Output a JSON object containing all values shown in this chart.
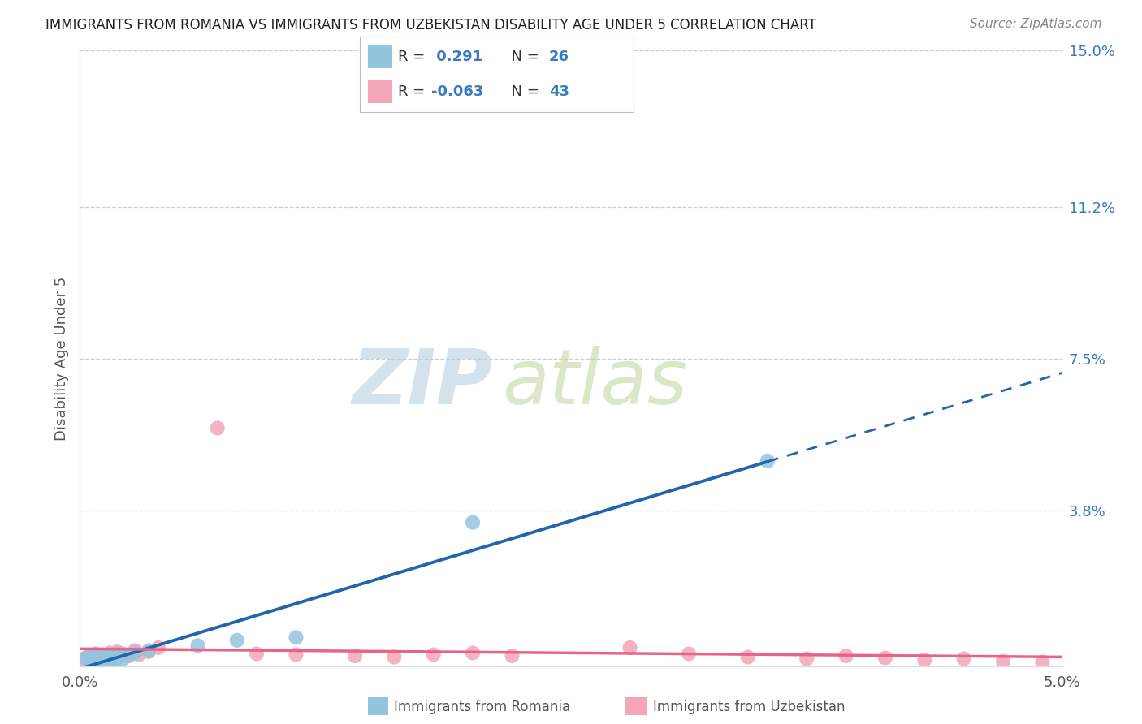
{
  "title": "IMMIGRANTS FROM ROMANIA VS IMMIGRANTS FROM UZBEKISTAN DISABILITY AGE UNDER 5 CORRELATION CHART",
  "source": "Source: ZipAtlas.com",
  "ylabel": "Disability Age Under 5",
  "xlim": [
    0.0,
    0.05
  ],
  "ylim": [
    0.0,
    0.15
  ],
  "ytick_positions": [
    0.038,
    0.075,
    0.112,
    0.15
  ],
  "ytick_labels": [
    "3.8%",
    "7.5%",
    "11.2%",
    "15.0%"
  ],
  "romania_R": 0.291,
  "romania_N": 26,
  "uzbekistan_R": -0.063,
  "uzbekistan_N": 43,
  "romania_color": "#92c5de",
  "uzbekistan_color": "#f4a6b8",
  "romania_line_color": "#2166ac",
  "uzbekistan_line_color": "#e8638a",
  "watermark_zip": "ZIP",
  "watermark_atlas": "atlas",
  "watermark_color_zip": "#b8cfe0",
  "watermark_color_atlas": "#c5d8a8",
  "romania_x": [
    0.0003,
    0.0005,
    0.0006,
    0.0007,
    0.0008,
    0.0009,
    0.001,
    0.0011,
    0.0012,
    0.0013,
    0.0014,
    0.0015,
    0.0016,
    0.0017,
    0.0018,
    0.0019,
    0.002,
    0.0022,
    0.0025,
    0.0028,
    0.0035,
    0.006,
    0.008,
    0.011,
    0.02,
    0.035
  ],
  "romania_y": [
    0.002,
    0.0015,
    0.001,
    0.0025,
    0.0005,
    0.0018,
    0.0012,
    0.0008,
    0.002,
    0.0015,
    0.0025,
    0.001,
    0.0022,
    0.0018,
    0.0015,
    0.003,
    0.0025,
    0.0018,
    0.0028,
    0.0032,
    0.0038,
    0.005,
    0.0063,
    0.007,
    0.035,
    0.05
  ],
  "uzbekistan_x": [
    0.0002,
    0.0003,
    0.0004,
    0.0005,
    0.0006,
    0.0007,
    0.0008,
    0.0009,
    0.001,
    0.0011,
    0.0012,
    0.0013,
    0.0014,
    0.0015,
    0.0016,
    0.0017,
    0.0018,
    0.0019,
    0.002,
    0.0022,
    0.0025,
    0.0028,
    0.003,
    0.0035,
    0.004,
    0.007,
    0.009,
    0.011,
    0.014,
    0.016,
    0.018,
    0.02,
    0.022,
    0.028,
    0.031,
    0.034,
    0.037,
    0.039,
    0.041,
    0.043,
    0.045,
    0.047,
    0.049
  ],
  "uzbekistan_y": [
    0.0015,
    0.002,
    0.001,
    0.0025,
    0.0018,
    0.0012,
    0.003,
    0.0022,
    0.0015,
    0.0028,
    0.002,
    0.0018,
    0.0025,
    0.0032,
    0.0015,
    0.0028,
    0.002,
    0.0035,
    0.0022,
    0.003,
    0.0025,
    0.0038,
    0.0028,
    0.0035,
    0.0045,
    0.058,
    0.003,
    0.0028,
    0.0025,
    0.0022,
    0.0028,
    0.0032,
    0.0025,
    0.0045,
    0.003,
    0.0022,
    0.0018,
    0.0025,
    0.002,
    0.0015,
    0.0018,
    0.0012,
    0.001
  ],
  "legend_romania_text": "R =  0.291   N = 26",
  "legend_uzbekistan_text": "R = -0.063   N = 43",
  "bottom_legend_romania": "Immigrants from Romania",
  "bottom_legend_uzbekistan": "Immigrants from Uzbekistan",
  "title_fontsize": 12,
  "source_fontsize": 11,
  "tick_fontsize": 13,
  "legend_fontsize": 13,
  "ylabel_fontsize": 13
}
